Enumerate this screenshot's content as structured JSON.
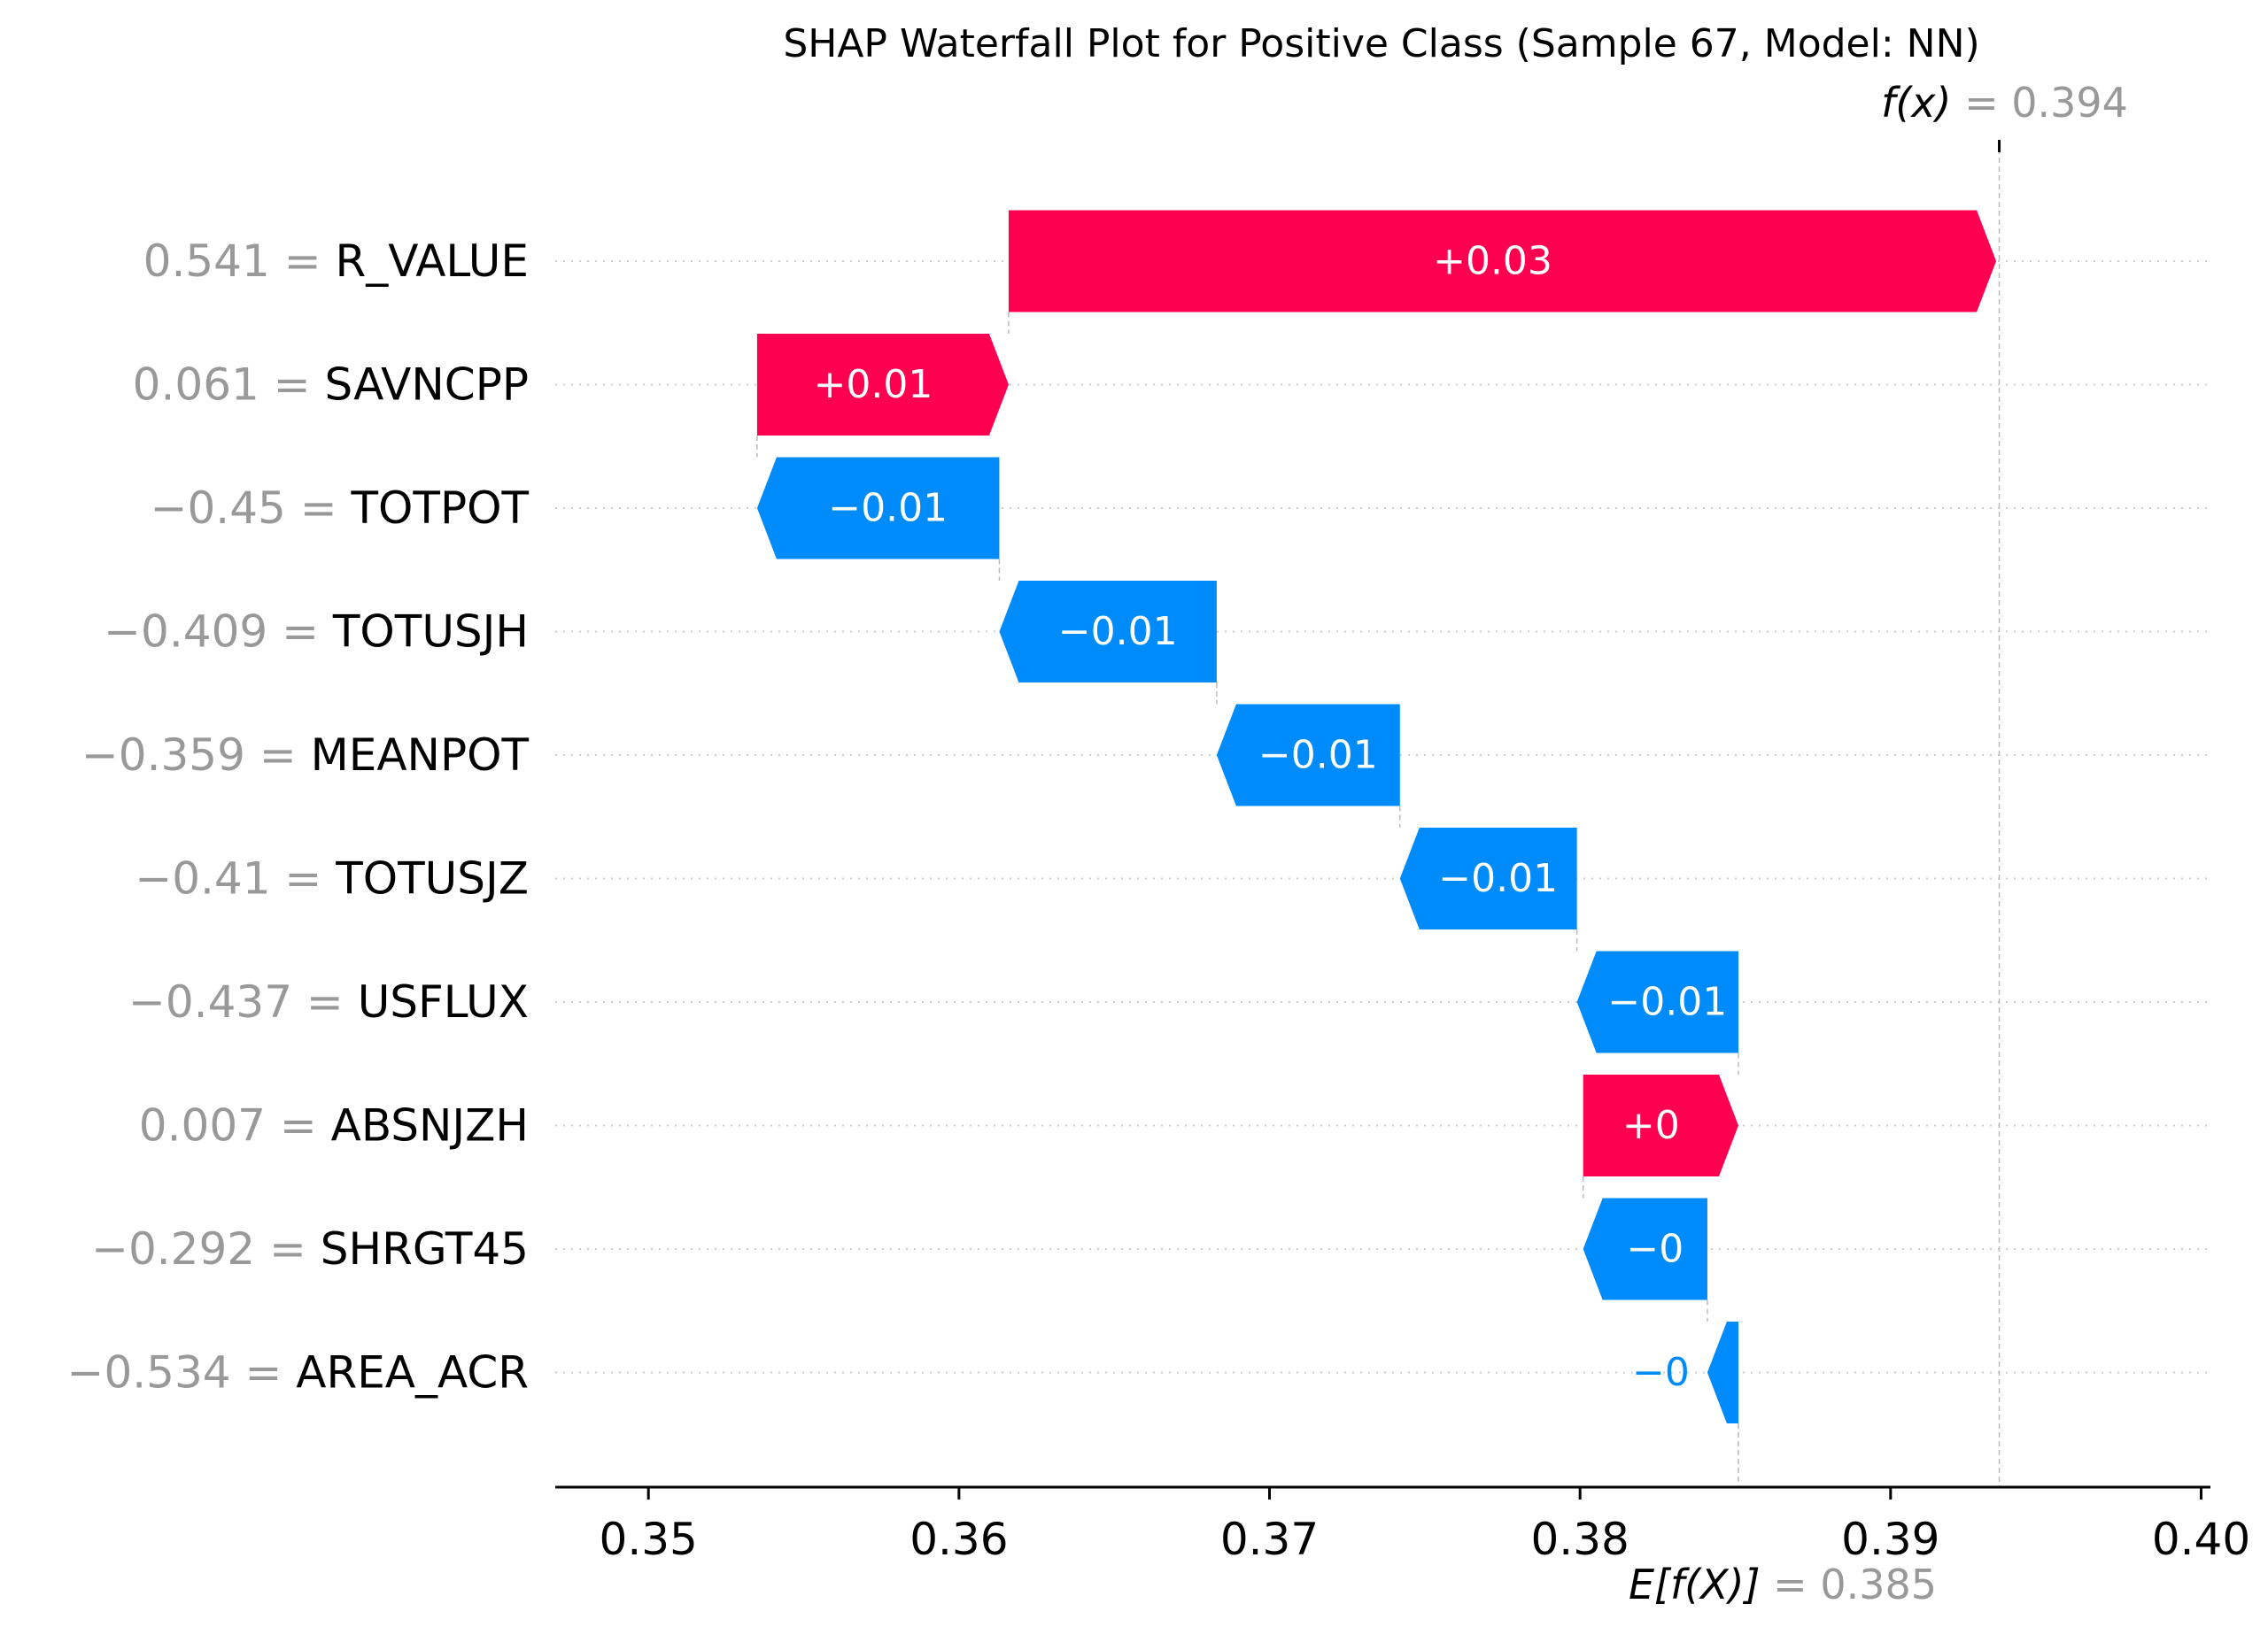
{
  "chart_data": {
    "type": "waterfall",
    "title": "SHAP Waterfall Plot for Positive Class (Sample 67, Model: NN)",
    "fx": {
      "label": "f(x)",
      "value_text": "= 0.394",
      "value": 0.3935
    },
    "efx": {
      "label": "E[f(X)]",
      "value_text": "= 0.385",
      "value": 0.3851
    },
    "xlim": [
      0.347,
      0.4003
    ],
    "xticks": [
      {
        "value": 0.35,
        "label": "0.35"
      },
      {
        "value": 0.36,
        "label": "0.36"
      },
      {
        "value": 0.37,
        "label": "0.37"
      },
      {
        "value": 0.38,
        "label": "0.38"
      },
      {
        "value": 0.39,
        "label": "0.39"
      },
      {
        "value": 0.4,
        "label": "0.40"
      }
    ],
    "features": [
      {
        "value_label": "0.541 =",
        "name": "R_VALUE",
        "shap": 0.0318,
        "shap_label": "+0.03"
      },
      {
        "value_label": "0.061 =",
        "name": "SAVNCPP",
        "shap": 0.0081,
        "shap_label": "+0.01"
      },
      {
        "value_label": "−0.45 =",
        "name": "TOTPOT",
        "shap": -0.0078,
        "shap_label": "−0.01"
      },
      {
        "value_label": "−0.409 =",
        "name": "TOTUSJH",
        "shap": -0.007,
        "shap_label": "−0.01"
      },
      {
        "value_label": "−0.359 =",
        "name": "MEANPOT",
        "shap": -0.0059,
        "shap_label": "−0.01"
      },
      {
        "value_label": "−0.41 =",
        "name": "TOTUSJZ",
        "shap": -0.0057,
        "shap_label": "−0.01"
      },
      {
        "value_label": "−0.437 =",
        "name": "USFLUX",
        "shap": -0.0052,
        "shap_label": "−0.01"
      },
      {
        "value_label": "0.007 =",
        "name": "ABSNJZH",
        "shap": 0.005,
        "shap_label": "+0"
      },
      {
        "value_label": "−0.292 =",
        "name": "SHRGT45",
        "shap": -0.004,
        "shap_label": "−0"
      },
      {
        "value_label": "−0.534 =",
        "name": "AREA_ACR",
        "shap": -0.001,
        "shap_label": "−0"
      }
    ],
    "colors": {
      "positive": "#ff0051",
      "negative": "#008bfb",
      "value_text": "#999999",
      "axis": "#000000"
    },
    "grid": "dotted-horizontal"
  }
}
